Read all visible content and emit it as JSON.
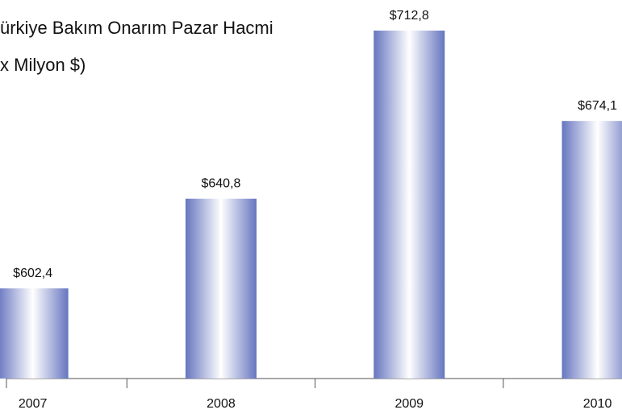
{
  "chart_data": {
    "type": "bar",
    "title": [
      "ürkiye Bakım Onarım Pazar Hacmi",
      "x Milyon $)"
    ],
    "categories": [
      "2007",
      "2008",
      "2009",
      "2010"
    ],
    "values": [
      602.4,
      640.8,
      712.8,
      674.1
    ],
    "value_labels": [
      "$602,4",
      "$640,8",
      "$712,8",
      "$674,1"
    ],
    "color": "#6675bf",
    "ylim": [
      563.8,
      725.9
    ]
  }
}
